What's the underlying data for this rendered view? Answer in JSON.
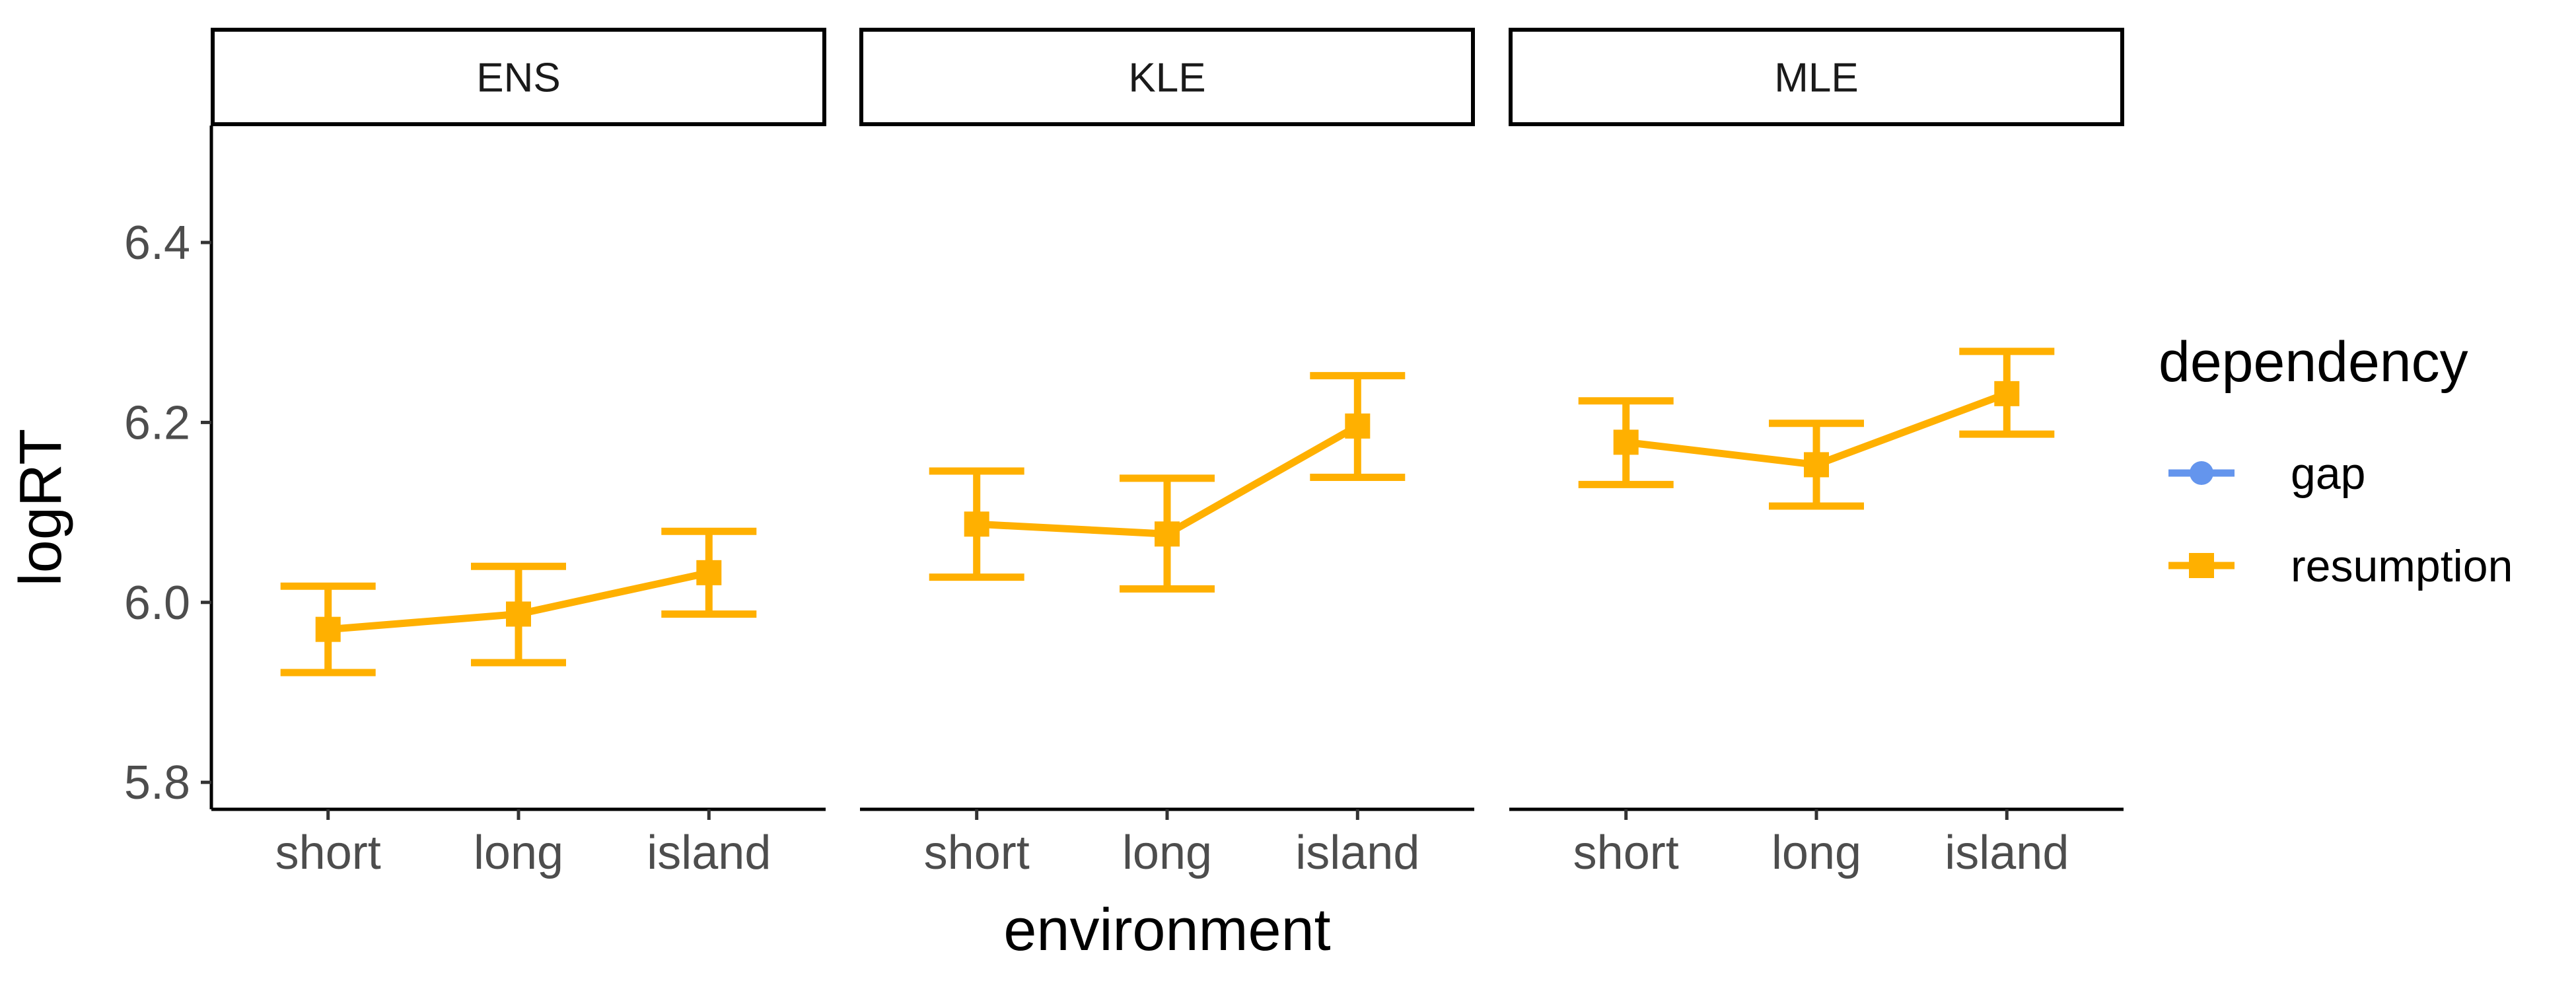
{
  "chart_data": {
    "type": "line",
    "facet_var": "group",
    "facets": [
      "ENS",
      "KLE",
      "MLE"
    ],
    "categories": [
      "short",
      "long",
      "island"
    ],
    "xlabel": "environment",
    "ylabel": "logRT",
    "ylim": [
      5.77,
      6.53
    ],
    "yticks": [
      5.8,
      6.0,
      6.2,
      6.4
    ],
    "ytick_labels": [
      "5.8",
      "6.0",
      "6.2",
      "6.4"
    ],
    "grid": false,
    "legend": {
      "title": "dependency",
      "position": "right",
      "entries": [
        {
          "name": "gap",
          "color": "#6495ED",
          "marker": "circle"
        },
        {
          "name": "resumption",
          "color": "#FFB000",
          "marker": "square"
        }
      ]
    },
    "series": [
      {
        "name": "resumption",
        "color": "#FFB000",
        "panels": [
          {
            "facet": "ENS",
            "values": [
              5.97,
              5.987,
              6.033
            ],
            "lower": [
              5.922,
              5.933,
              5.987
            ],
            "upper": [
              6.018,
              6.04,
              6.079
            ]
          },
          {
            "facet": "KLE",
            "values": [
              6.087,
              6.076,
              6.196
            ],
            "lower": [
              6.028,
              6.015,
              6.139
            ],
            "upper": [
              6.146,
              6.138,
              6.252
            ]
          },
          {
            "facet": "MLE",
            "values": [
              6.178,
              6.153,
              6.232
            ],
            "lower": [
              6.131,
              6.107,
              6.187
            ],
            "upper": [
              6.224,
              6.199,
              6.279
            ]
          }
        ]
      }
    ]
  }
}
